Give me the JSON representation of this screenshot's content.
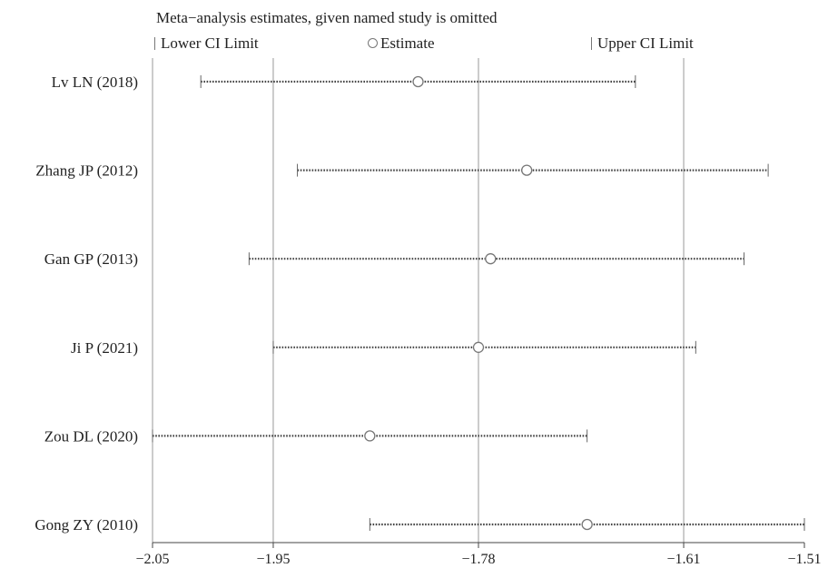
{
  "chart_data": {
    "type": "scatter",
    "title": "Meta−analysis estimates, given named study is omitted",
    "legend": [
      {
        "key": "lower",
        "label": "Lower CI Limit"
      },
      {
        "key": "estimate",
        "label": "Estimate"
      },
      {
        "key": "upper",
        "label": "Upper CI Limit"
      }
    ],
    "legend_placement": "top",
    "xlim": [
      -2.05,
      -1.51
    ],
    "xticks": [
      -2.05,
      -1.95,
      -1.78,
      -1.61,
      -1.51
    ],
    "xtick_labels": [
      "−2.05",
      "−1.95",
      "−1.78",
      "−1.61",
      "−1.51"
    ],
    "gridlines_at": [
      -1.95,
      -1.78,
      -1.61
    ],
    "studies": [
      {
        "label": "Lv LN (2018)",
        "lower": -2.01,
        "estimate": -1.83,
        "upper": -1.65
      },
      {
        "label": "Zhang JP (2012)",
        "lower": -1.93,
        "estimate": -1.74,
        "upper": -1.54
      },
      {
        "label": "Gan GP (2013)",
        "lower": -1.97,
        "estimate": -1.77,
        "upper": -1.56
      },
      {
        "label": "Ji P (2021)",
        "lower": -1.95,
        "estimate": -1.78,
        "upper": -1.6
      },
      {
        "label": "Zou DL (2020)",
        "lower": -2.05,
        "estimate": -1.87,
        "upper": -1.69
      },
      {
        "label": "Gong ZY (2010)",
        "lower": -1.87,
        "estimate": -1.69,
        "upper": -1.51
      }
    ]
  }
}
